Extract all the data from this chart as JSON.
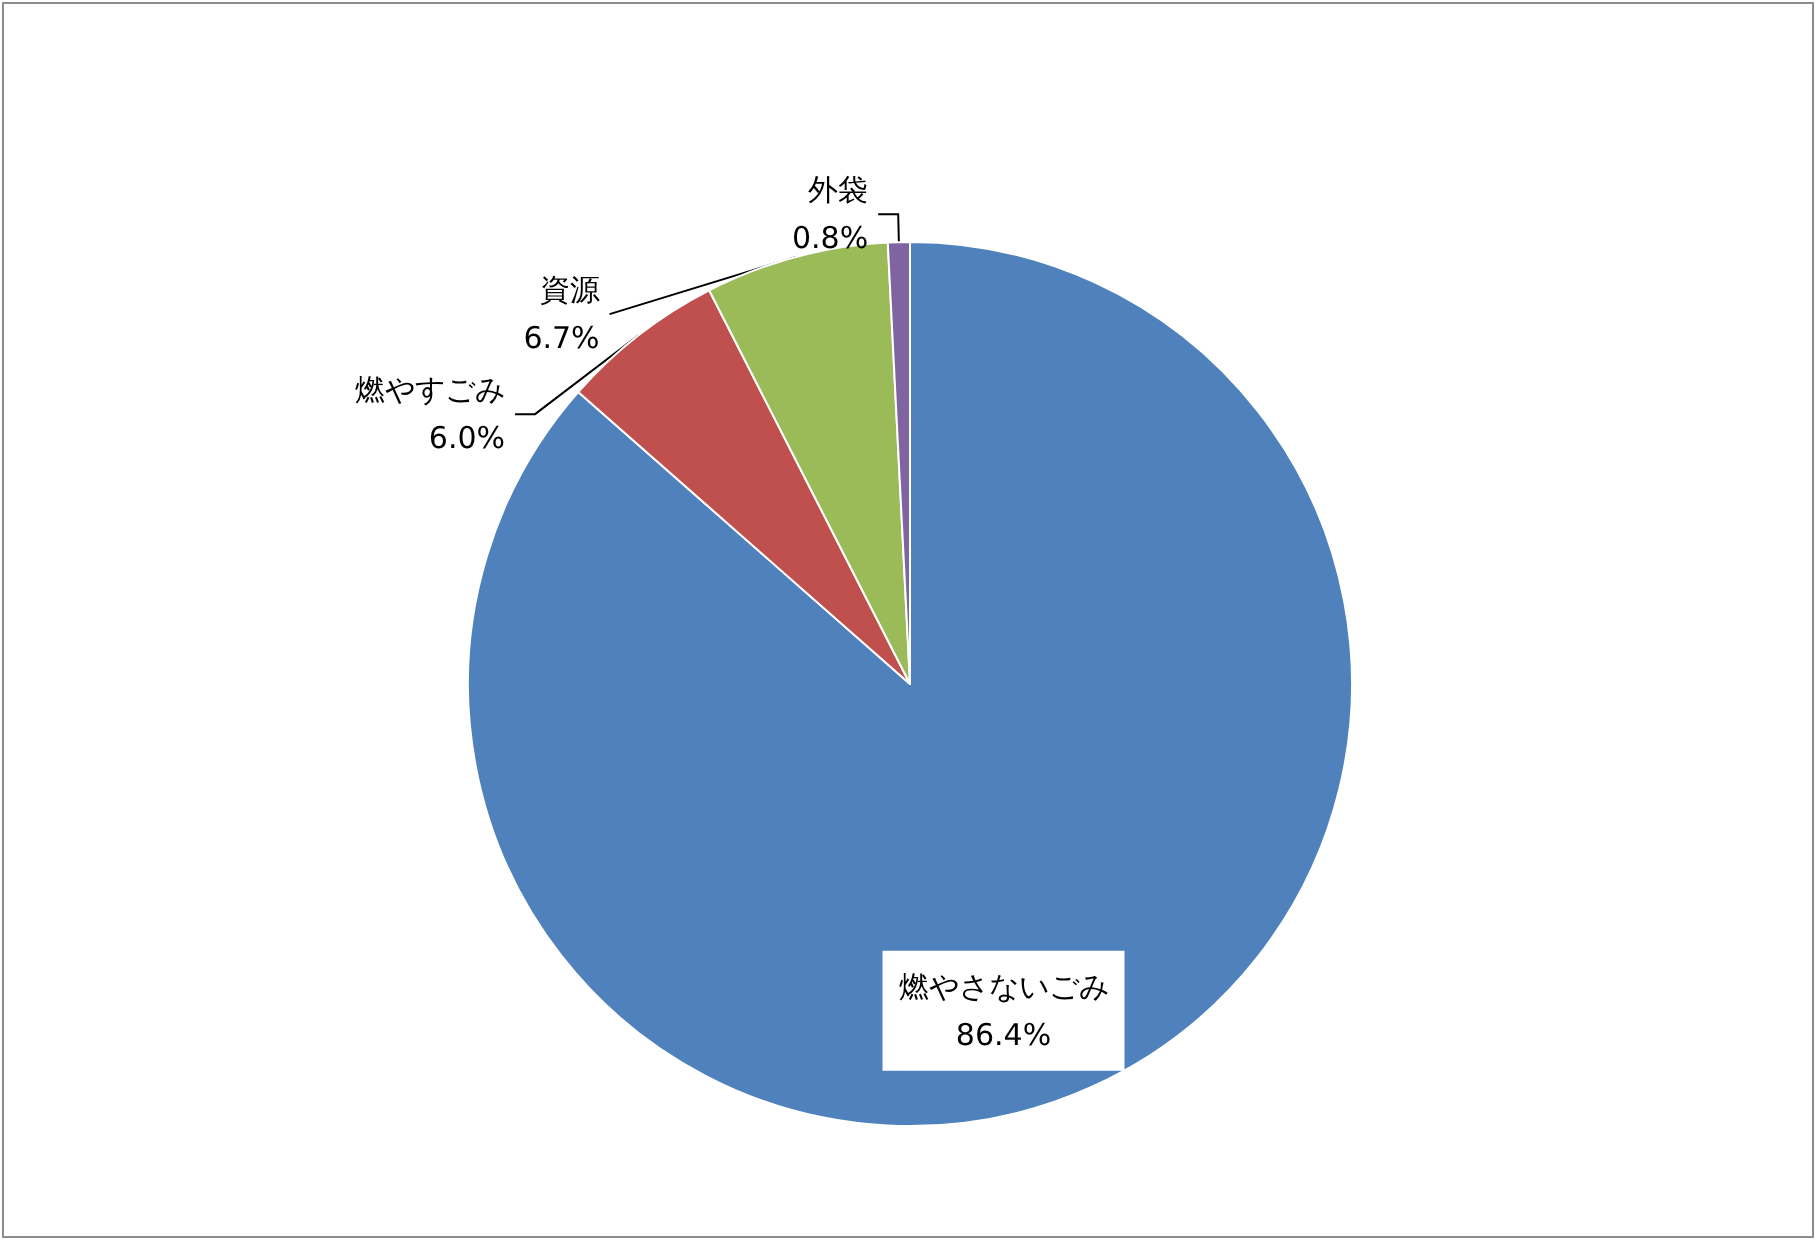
{
  "chart_data": {
    "type": "pie",
    "categories": [
      "燃やさないごみ",
      "燃やすごみ",
      "資源",
      "外袋"
    ],
    "values": [
      86.4,
      6.0,
      6.7,
      0.8
    ],
    "colors": [
      "#4f81bd",
      "#c0504d",
      "#9bbb59",
      "#8064a2"
    ],
    "value_labels": [
      "86.4%",
      "6.0%",
      "6.7%",
      "0.8%"
    ],
    "legend": false
  }
}
